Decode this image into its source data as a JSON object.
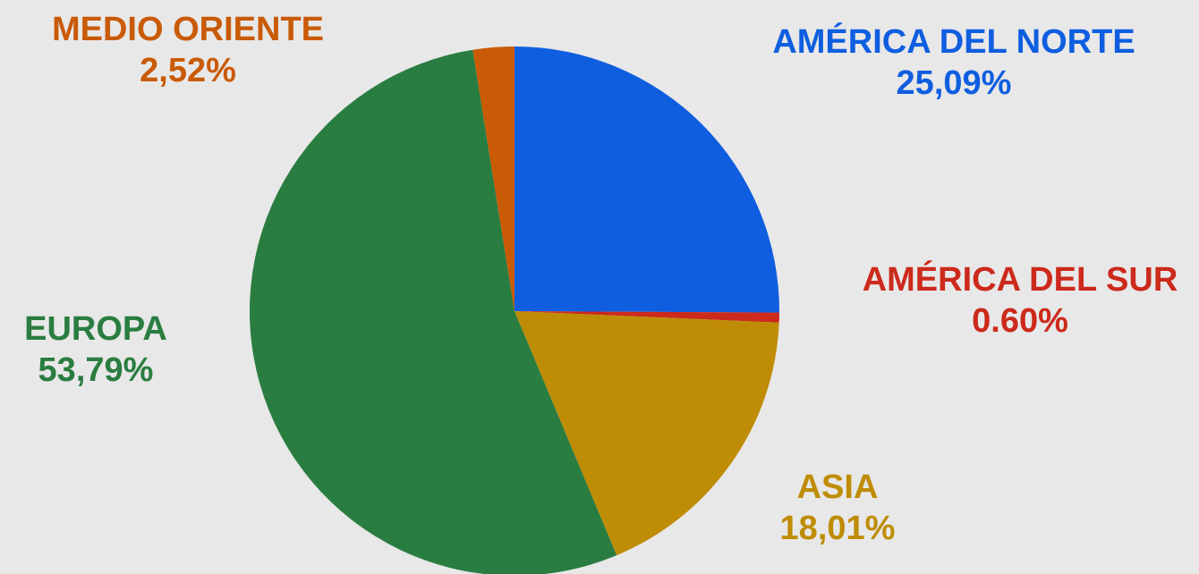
{
  "chart_data": {
    "type": "pie",
    "slices": [
      {
        "name": "AMÉRICA DEL NORTE",
        "value": 25.09,
        "value_label": "25,09%",
        "color": "#0f5ee0"
      },
      {
        "name": "AMÉRICA DEL SUR",
        "value": 0.6,
        "value_label": "0.60%",
        "color": "#cc2a1c"
      },
      {
        "name": "ASIA",
        "value": 18.01,
        "value_label": "18,01%",
        "color": "#bf8c05"
      },
      {
        "name": "EUROPA",
        "value": 53.79,
        "value_label": "53,79%",
        "color": "#2a7d40"
      },
      {
        "name": "MEDIO ORIENTE",
        "value": 2.52,
        "value_label": "2,52%",
        "color": "#c95a06"
      }
    ],
    "start_angle": "top",
    "direction": "clockwise"
  }
}
